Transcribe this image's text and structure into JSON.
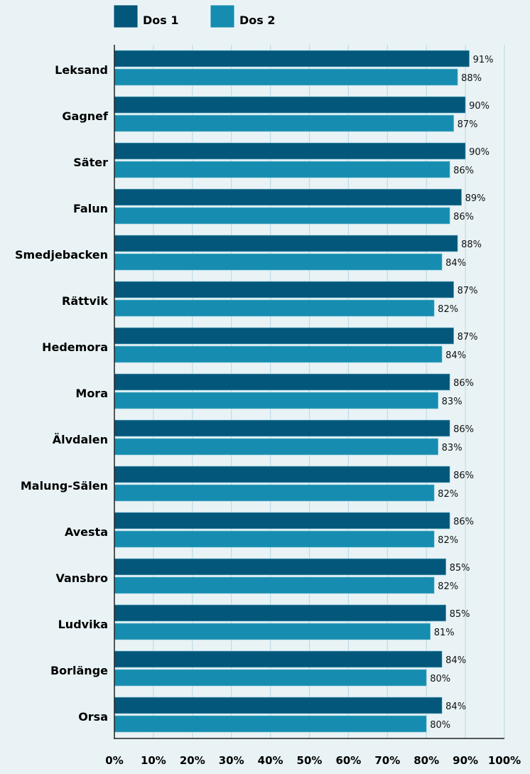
{
  "chart_data": {
    "type": "bar",
    "orientation": "horizontal",
    "title": "",
    "xlabel": "",
    "ylabel": "",
    "xlim": [
      0,
      100
    ],
    "grid": true,
    "legend_position": "top-left",
    "categories": [
      "Leksand",
      "Gagnef",
      "Säter",
      "Falun",
      "Smedjebacken",
      "Rättvik",
      "Hedemora",
      "Mora",
      "Älvdalen",
      "Malung-Sälen",
      "Avesta",
      "Vansbro",
      "Ludvika",
      "Borlänge",
      "Orsa"
    ],
    "series": [
      {
        "name": "Dos 1",
        "color": "#03577a",
        "values": [
          91,
          90,
          90,
          89,
          88,
          87,
          87,
          86,
          86,
          86,
          86,
          85,
          85,
          84,
          84
        ]
      },
      {
        "name": "Dos 2",
        "color": "#168db0",
        "values": [
          88,
          87,
          86,
          86,
          84,
          82,
          84,
          83,
          83,
          82,
          82,
          82,
          81,
          80,
          80
        ]
      }
    ],
    "value_labels": {
      "Dos 1": [
        "91%",
        "90%",
        "90%",
        "89%",
        "88%",
        "87%",
        "87%",
        "86%",
        "86%",
        "86%",
        "86%",
        "85%",
        "85%",
        "84%",
        "84%"
      ],
      "Dos 2": [
        "88%",
        "87%",
        "86%",
        "86%",
        "84%",
        "82%",
        "84%",
        "83%",
        "83%",
        "82%",
        "82%",
        "82%",
        "81%",
        "80%",
        "80%"
      ]
    },
    "xticks": [
      0,
      10,
      20,
      30,
      40,
      50,
      60,
      70,
      80,
      90,
      100
    ],
    "xtick_labels": [
      "0%",
      "10%",
      "20%",
      "30%",
      "40%",
      "50%",
      "60%",
      "70%",
      "80%",
      "90%",
      "100%"
    ]
  }
}
